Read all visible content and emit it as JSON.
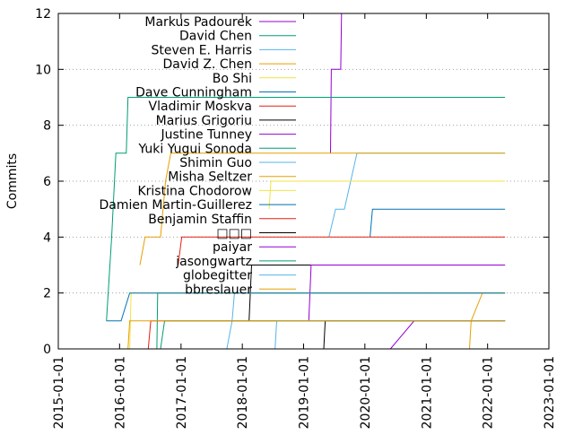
{
  "chart_data": {
    "type": "line",
    "ylabel": "Commits",
    "xlabel": "",
    "title": "",
    "xlim": [
      "2015-01-01",
      "2023-01-01"
    ],
    "ylim": [
      0,
      12
    ],
    "x_ticks": [
      "2015-01-01",
      "2016-01-01",
      "2017-01-01",
      "2018-01-01",
      "2019-01-01",
      "2020-01-01",
      "2021-01-01",
      "2022-01-01",
      "2023-01-01"
    ],
    "y_ticks": [
      0,
      2,
      4,
      6,
      8,
      10,
      12
    ],
    "grid": "horizontal dotted",
    "legend_position": "top-left, inside plot",
    "series": [
      {
        "name": "Markus Padourek",
        "color": "#9400d3",
        "points": [
          [
            "2019-06-10",
            7
          ],
          [
            "2019-06-15",
            10
          ],
          [
            "2019-08-10",
            10
          ],
          [
            "2019-08-15",
            12
          ]
        ]
      },
      {
        "name": "David Chen",
        "color": "#009e73",
        "points": [
          [
            "2015-10-15",
            1
          ],
          [
            "2015-11-15",
            4
          ],
          [
            "2015-12-10",
            7
          ],
          [
            "2016-02-10",
            7
          ],
          [
            "2016-02-20",
            9
          ],
          [
            "2022-04-15",
            9
          ]
        ]
      },
      {
        "name": "Steven E. Harris",
        "color": "#56b4e9",
        "points": [
          [
            "2019-06-01",
            4
          ],
          [
            "2019-07-10",
            5
          ],
          [
            "2019-09-01",
            5
          ],
          [
            "2019-11-15",
            7
          ],
          [
            "2022-04-15",
            7
          ]
        ]
      },
      {
        "name": "David Z. Chen",
        "color": "#e69f00",
        "points": [
          [
            "2016-05-01",
            3
          ],
          [
            "2016-06-01",
            4
          ],
          [
            "2016-09-01",
            4
          ],
          [
            "2016-10-01",
            6
          ],
          [
            "2016-11-01",
            7
          ],
          [
            "2022-04-15",
            7
          ]
        ]
      },
      {
        "name": "Bo Shi",
        "color": "#f0e442",
        "points": [
          [
            "2018-06-10",
            5
          ],
          [
            "2018-06-20",
            6
          ],
          [
            "2022-04-15",
            6
          ]
        ]
      },
      {
        "name": "Dave Cunningham",
        "color": "#0072b2",
        "points": [
          [
            "2020-02-01",
            4
          ],
          [
            "2020-02-15",
            5
          ],
          [
            "2022-04-15",
            5
          ]
        ]
      },
      {
        "name": "Vladimir Moskva",
        "color": "#e51e10",
        "points": [
          [
            "2016-12-15",
            3
          ],
          [
            "2017-01-05",
            4
          ],
          [
            "2022-04-15",
            4
          ]
        ]
      },
      {
        "name": "Marius Grigoriu",
        "color": "#000000",
        "points": [
          [
            "2018-02-10",
            1
          ],
          [
            "2018-02-25",
            3
          ],
          [
            "2022-04-15",
            3
          ]
        ]
      },
      {
        "name": "Justine Tunney",
        "color": "#9400d3",
        "points": [
          [
            "2019-02-01",
            1
          ],
          [
            "2019-02-15",
            3
          ],
          [
            "2022-04-15",
            3
          ]
        ]
      },
      {
        "name": "Yuki Yugui Sonoda",
        "color": "#009e73",
        "points": [
          [
            "2016-08-10",
            0
          ],
          [
            "2016-08-15",
            2
          ],
          [
            "2022-04-15",
            2
          ]
        ]
      },
      {
        "name": "Shimin Guo",
        "color": "#56b4e9",
        "points": [
          [
            "2017-10-01",
            0
          ],
          [
            "2017-11-01",
            1
          ],
          [
            "2017-11-15",
            2
          ],
          [
            "2022-04-15",
            2
          ]
        ]
      },
      {
        "name": "Misha Seltzer",
        "color": "#e69f00",
        "points": [
          [
            "2021-09-15",
            0
          ],
          [
            "2021-09-25",
            1
          ],
          [
            "2021-12-01",
            2
          ],
          [
            "2022-04-15",
            2
          ]
        ]
      },
      {
        "name": "Kristina Chodorow",
        "color": "#f0e442",
        "points": [
          [
            "2016-03-01",
            0
          ],
          [
            "2016-03-10",
            2
          ],
          [
            "2022-04-15",
            2
          ]
        ]
      },
      {
        "name": "Damien Martin-Guillerez",
        "color": "#0072b2",
        "points": [
          [
            "2015-10-15",
            1
          ],
          [
            "2016-01-10",
            1
          ],
          [
            "2016-03-01",
            2
          ],
          [
            "2022-04-15",
            2
          ]
        ]
      },
      {
        "name": "Benjamin Staffin",
        "color": "#e51e10",
        "points": [
          [
            "2016-06-20",
            0
          ],
          [
            "2016-07-05",
            1
          ],
          [
            "2022-04-15",
            1
          ]
        ]
      },
      {
        "name": "□□□",
        "color": "#000000",
        "points": [
          [
            "2019-05-01",
            0
          ],
          [
            "2019-05-10",
            1
          ],
          [
            "2022-04-15",
            1
          ]
        ]
      },
      {
        "name": "paiyar",
        "color": "#9400d3",
        "points": [
          [
            "2020-06-01",
            0
          ],
          [
            "2020-10-20",
            1
          ],
          [
            "2022-04-15",
            1
          ]
        ]
      },
      {
        "name": "jasongwartz",
        "color": "#009e73",
        "points": [
          [
            "2016-09-01",
            0
          ],
          [
            "2016-09-25",
            1
          ],
          [
            "2022-04-15",
            1
          ]
        ]
      },
      {
        "name": "globegitter",
        "color": "#56b4e9",
        "points": [
          [
            "2018-07-15",
            0
          ],
          [
            "2018-07-25",
            1
          ],
          [
            "2022-04-15",
            1
          ]
        ]
      },
      {
        "name": "bbreslauer",
        "color": "#e69f00",
        "points": [
          [
            "2016-02-20",
            0
          ],
          [
            "2016-03-01",
            1
          ],
          [
            "2022-04-15",
            1
          ]
        ]
      }
    ]
  }
}
